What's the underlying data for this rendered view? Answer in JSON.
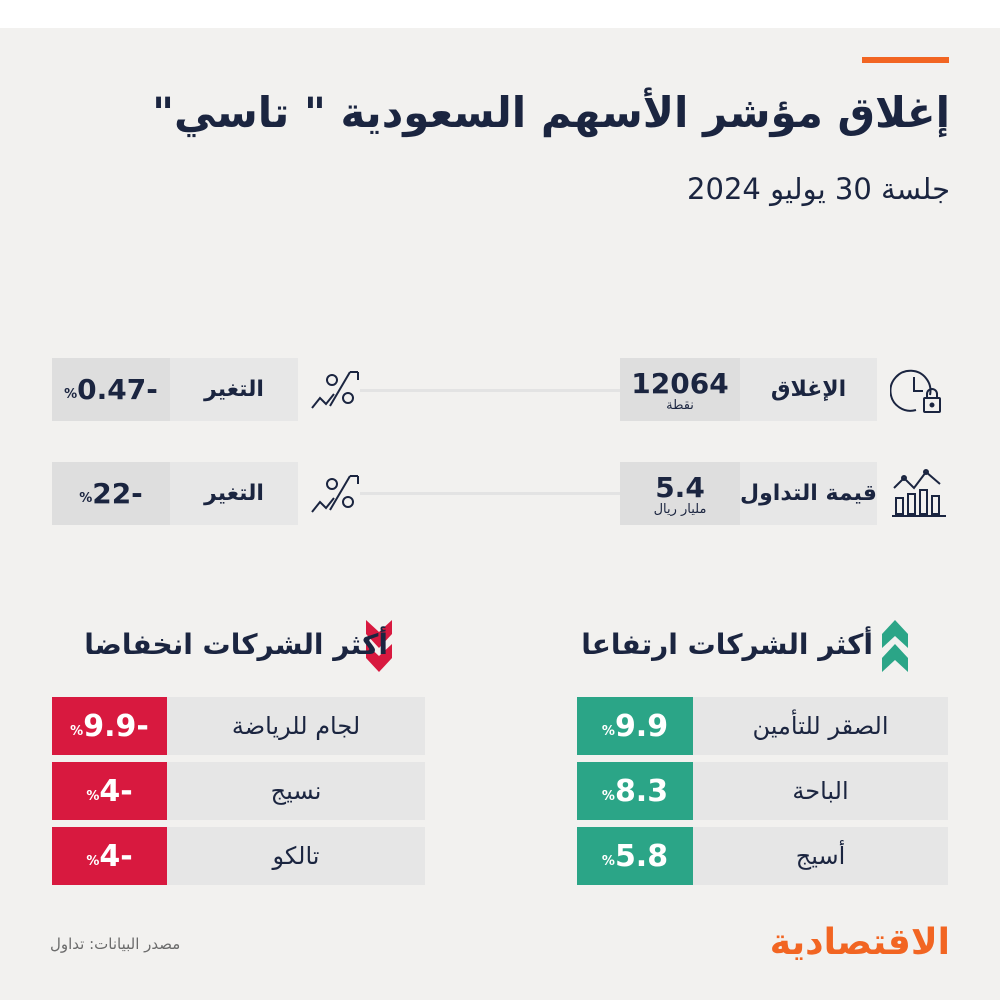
{
  "header": {
    "title": "إغلاق مؤشر الأسهم السعودية \" تاسي\"",
    "subtitle": "جلسة 30 يوليو 2024"
  },
  "stats": [
    {
      "label": "الإغلاق",
      "value": "12064",
      "unit": "نقطة",
      "icon": "clock-lock-icon",
      "change_label": "التغير",
      "change_value": "0.47-",
      "change_unit": "%",
      "change_icon": "percent-trend-icon"
    },
    {
      "label": "قيمة التداول",
      "value": "5.4",
      "unit": "مليار ريال",
      "icon": "bar-line-chart-icon",
      "change_label": "التغير",
      "change_value": "22-",
      "change_unit": "%",
      "change_icon": "percent-trend-icon"
    }
  ],
  "gainers": {
    "title": "أكثر الشركات ارتفاعا",
    "icon": "double-chevron-up-icon",
    "color": "#2ba587",
    "rows": [
      {
        "name": "الصقر للتأمين",
        "value": "9.9",
        "unit": "%"
      },
      {
        "name": "الباحة",
        "value": "8.3",
        "unit": "%"
      },
      {
        "name": "أسيج",
        "value": "5.8",
        "unit": "%"
      }
    ]
  },
  "losers": {
    "title": "أكثر الشركات انخفاضا",
    "icon": "double-chevron-down-icon",
    "color": "#d8193f",
    "rows": [
      {
        "name": "لجام للرياضة",
        "value": "9.9-",
        "unit": "%"
      },
      {
        "name": "نسيج",
        "value": "4-",
        "unit": "%"
      },
      {
        "name": "تالكو",
        "value": "4-",
        "unit": "%"
      }
    ]
  },
  "footer": {
    "source": "مصدر البيانات: تداول",
    "logo": "الاقتصادية"
  },
  "colors": {
    "accent": "#f26522",
    "text": "#1b2540"
  }
}
